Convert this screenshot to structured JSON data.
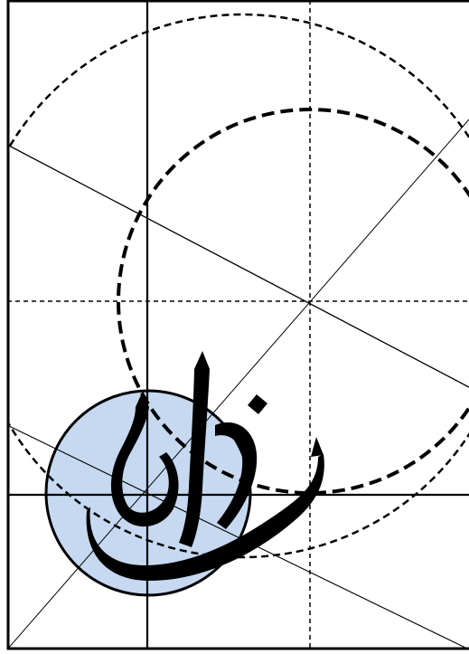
{
  "diagram": {
    "background_color": "#ffffff",
    "line_color": "#000000",
    "highlight_circle_fill": "#c6d9f1",
    "calligraphy_color": "#000000"
  }
}
